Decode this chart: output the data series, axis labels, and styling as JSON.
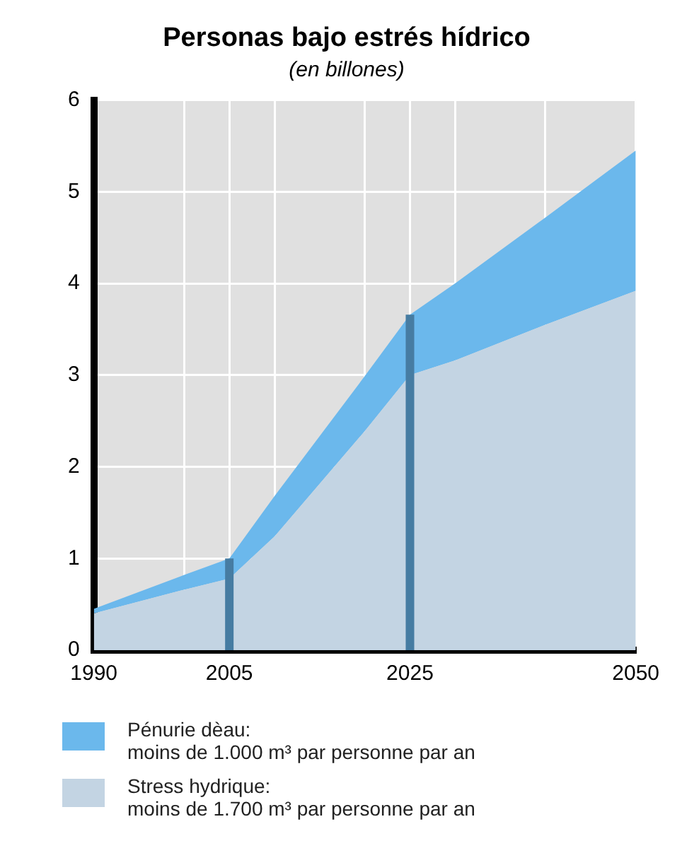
{
  "chart_data": {
    "type": "area",
    "title": "Personas bajo estrés hídrico",
    "subtitle": "(en billones)",
    "x": [
      1990,
      2000,
      2005,
      2010,
      2020,
      2025,
      2030,
      2040,
      2050
    ],
    "stacked": true,
    "series": [
      {
        "name": "Stress hydrique:\nmoins de 1.700 m³ par personne par an",
        "color": "#c3d4e3",
        "values": [
          0.4,
          0.66,
          0.78,
          1.24,
          2.39,
          3.0,
          3.16,
          3.55,
          3.92
        ]
      },
      {
        "name": "Pénurie dèau:\nmoins de 1.000 m³ par personne par an",
        "color": "#6bb8ec",
        "values": [
          0.05,
          0.16,
          0.22,
          0.44,
          0.6,
          0.66,
          0.84,
          1.17,
          1.53
        ]
      }
    ],
    "xlim": [
      1990,
      2050
    ],
    "xticks": [
      1990,
      {
        "value": 2000,
        "label": null
      },
      2005,
      {
        "value": 2010,
        "label": null
      },
      {
        "value": 2020,
        "label": null
      },
      2025,
      {
        "value": 2030,
        "label": null
      },
      {
        "value": 2040,
        "label": null
      },
      2050
    ],
    "ylim": [
      0,
      6
    ],
    "yticks": [
      0,
      1,
      2,
      3,
      4,
      5,
      6
    ],
    "ref_lines": [
      {
        "axis": "x",
        "value": 2005,
        "color": "#467ca2"
      },
      {
        "axis": "x",
        "value": 2025,
        "color": "#467ca2"
      }
    ],
    "grid": true,
    "legend": "bottom"
  }
}
